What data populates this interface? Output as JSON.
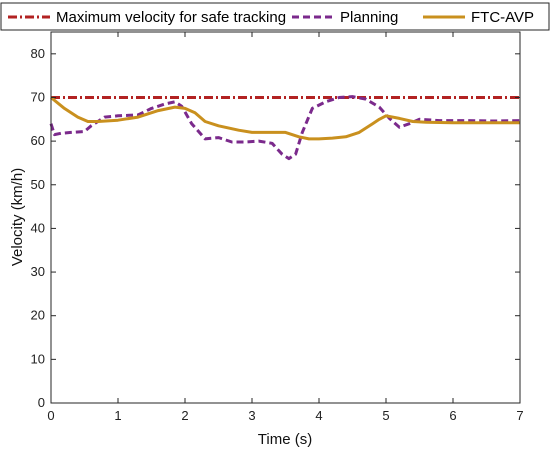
{
  "chart_data": {
    "type": "line",
    "title": "",
    "xlabel": "Time (s)",
    "ylabel": "Velocity (km/h)",
    "xlim": [
      0,
      7
    ],
    "ylim": [
      0,
      85
    ],
    "xticks": [
      "0",
      "1",
      "2",
      "3",
      "4",
      "5",
      "6",
      "7"
    ],
    "yticks": [
      "0",
      "10",
      "20",
      "30",
      "40",
      "50",
      "60",
      "70",
      "80"
    ],
    "grid": false,
    "legend_position": "top",
    "series": [
      {
        "name": "Maximum velocity for safe tracking",
        "style": "dash-dot",
        "color": "#B22222",
        "x": [
          0,
          7
        ],
        "y": [
          70,
          70
        ]
      },
      {
        "name": "Planning",
        "style": "dashed",
        "color": "#7B2A8C",
        "x": [
          0,
          0.05,
          0.15,
          0.3,
          0.5,
          0.6,
          0.7,
          0.8,
          1.0,
          1.3,
          1.5,
          1.7,
          1.85,
          1.95,
          2.1,
          2.3,
          2.5,
          2.7,
          2.9,
          3.1,
          3.3,
          3.45,
          3.55,
          3.65,
          3.75,
          3.9,
          4.1,
          4.3,
          4.5,
          4.7,
          4.9,
          5.05,
          5.2,
          5.35,
          5.5,
          5.8,
          6.2,
          6.6,
          7.0
        ],
        "y": [
          64,
          61.5,
          61.8,
          62,
          62.2,
          63.5,
          64.5,
          65.5,
          65.8,
          66,
          67.5,
          68.5,
          69,
          68,
          64,
          60.5,
          60.8,
          59.8,
          59.8,
          60,
          59.5,
          57,
          56,
          57,
          62,
          67.5,
          69,
          70,
          70.2,
          69.6,
          67.8,
          65.2,
          63.2,
          64,
          65,
          64.7,
          64.7,
          64.6,
          64.7
        ]
      },
      {
        "name": "FTC-AVP",
        "style": "solid",
        "color": "#C9901E",
        "x": [
          0,
          0.2,
          0.4,
          0.55,
          0.7,
          1.0,
          1.3,
          1.6,
          1.85,
          2.0,
          2.15,
          2.3,
          2.5,
          2.8,
          3.0,
          3.2,
          3.5,
          3.7,
          3.85,
          4.0,
          4.2,
          4.4,
          4.6,
          4.8,
          4.9,
          5.0,
          5.2,
          5.4,
          5.6,
          6.0,
          6.5,
          7.0
        ],
        "y": [
          70,
          67.5,
          65.5,
          64.5,
          64.5,
          64.8,
          65.5,
          67,
          67.8,
          67.5,
          66.5,
          64.5,
          63.5,
          62.5,
          62,
          62,
          62,
          61,
          60.5,
          60.5,
          60.7,
          61,
          62,
          64,
          65,
          65.8,
          65.2,
          64.5,
          64.3,
          64.2,
          64.2,
          64.2
        ]
      }
    ]
  }
}
